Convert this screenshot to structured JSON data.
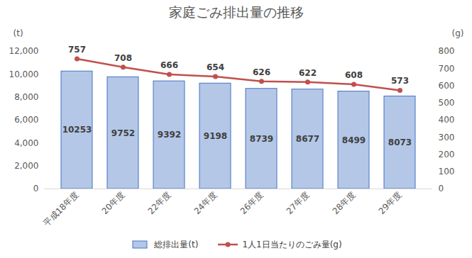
{
  "chart_data": {
    "type": "bar",
    "title": "家庭ごみ排出量の推移",
    "categories": [
      "平成18年度",
      "20年度",
      "22年度",
      "24年度",
      "26年度",
      "27年度",
      "28年度",
      "29年度"
    ],
    "series": [
      {
        "name": "総排出量(t)",
        "type": "bar",
        "color": "#b4c7e7",
        "values": [
          10253,
          9752,
          9392,
          9198,
          8739,
          8677,
          8499,
          8073
        ]
      },
      {
        "name": "1人1日当たりのごみ量(g)",
        "type": "line",
        "axis": "y2",
        "color": "#c0504d",
        "marker": "circle",
        "values": [
          757,
          708,
          666,
          654,
          626,
          622,
          608,
          573
        ]
      }
    ],
    "y_label": "(t)",
    "y2_label": "(g)",
    "ylim": [
      0,
      12000
    ],
    "yticks": [
      0,
      2000,
      4000,
      6000,
      8000,
      10000,
      12000
    ],
    "y2lim": [
      0,
      800
    ],
    "y2ticks": [
      0,
      100,
      200,
      300,
      400,
      500,
      600,
      700,
      800
    ],
    "grid": false,
    "data_labels": true,
    "legend": "bottom"
  }
}
